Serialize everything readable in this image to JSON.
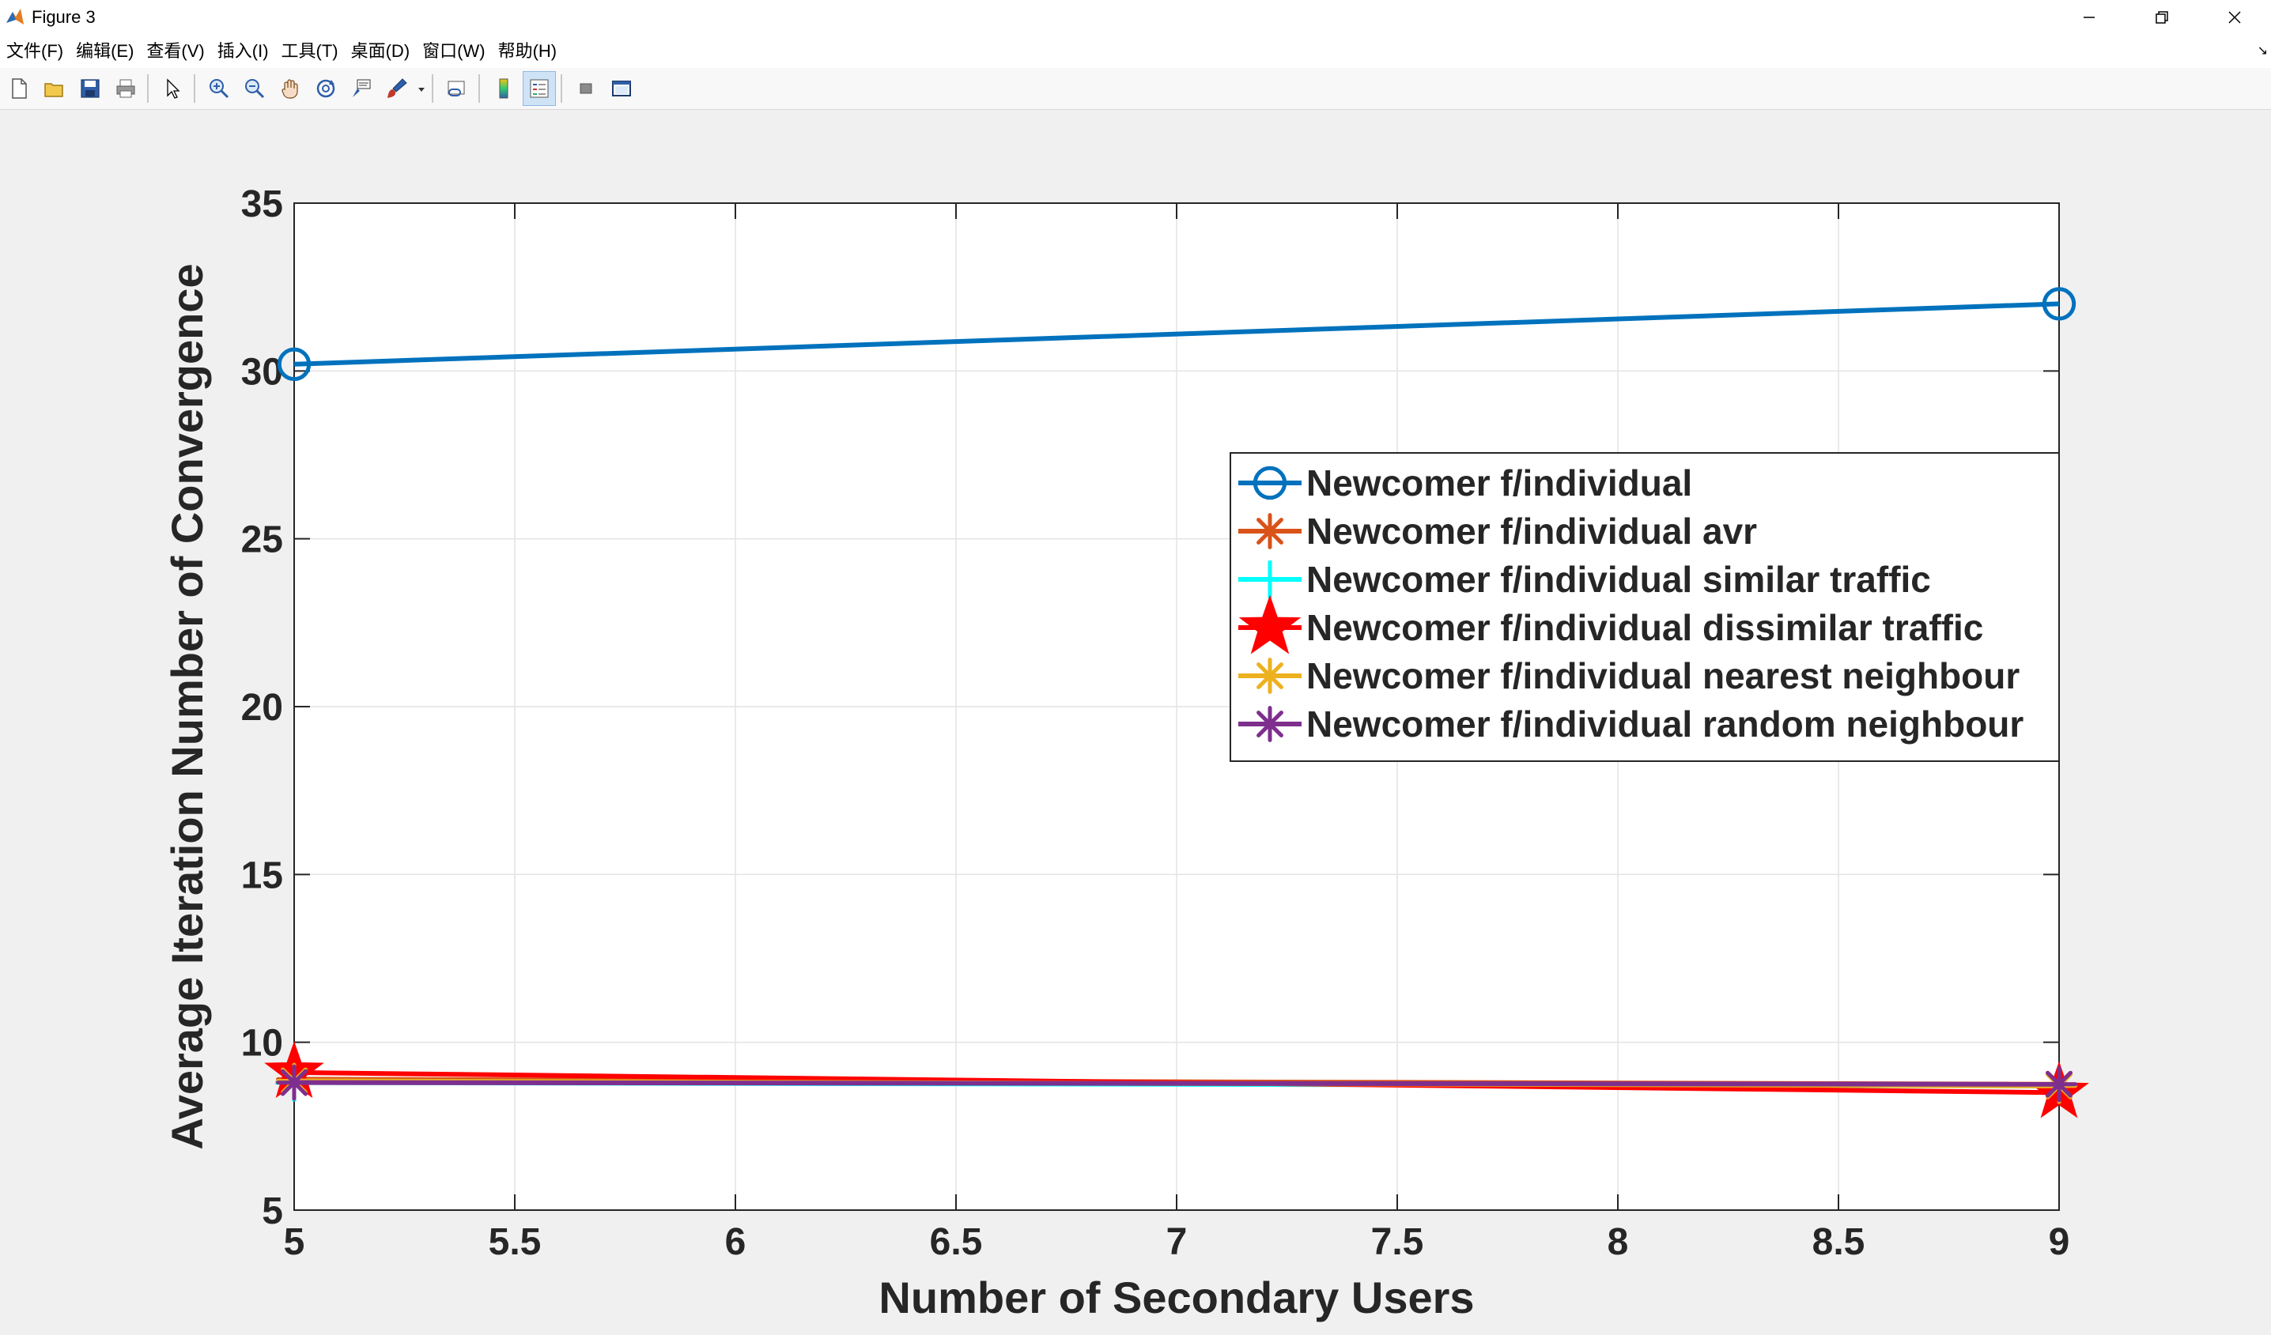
{
  "window": {
    "title": "Figure 3",
    "app_icon": "matlab-icon"
  },
  "menu": {
    "items": [
      "文件(F)",
      "编辑(E)",
      "查看(V)",
      "插入(I)",
      "工具(T)",
      "桌面(D)",
      "窗口(W)",
      "帮助(H)"
    ]
  },
  "toolbar": {
    "buttons": [
      "new-figure-icon",
      "open-file-icon",
      "save-icon",
      "print-icon",
      "edit-plot-icon",
      "zoom-in-icon",
      "zoom-out-icon",
      "pan-icon",
      "rotate-3d-icon",
      "data-cursor-icon",
      "brush-icon",
      "link-plot-icon",
      "colorbar-icon",
      "legend-icon",
      "hide-plot-tools-icon",
      "show-plot-tools-icon"
    ]
  },
  "colors": {
    "series1": "#0072BD",
    "series2": "#D95319",
    "series3": "#00FFFF",
    "series4": "#FF0000",
    "series5": "#EDB120",
    "series6": "#7E2F8E"
  },
  "chart_data": {
    "type": "line",
    "title": "",
    "xlabel": "Number of Secondary Users",
    "ylabel": "Average Iteration Number of Convergence",
    "xlim": [
      5,
      9
    ],
    "ylim": [
      5,
      35
    ],
    "xticks": [
      5,
      5.5,
      6,
      6.5,
      7,
      7.5,
      8,
      8.5,
      9
    ],
    "xtick_labels": [
      "5",
      "5.5",
      "6",
      "6.5",
      "7",
      "7.5",
      "8",
      "8.5",
      "9"
    ],
    "yticks": [
      5,
      10,
      15,
      20,
      25,
      30,
      35
    ],
    "ytick_labels": [
      "5",
      "10",
      "15",
      "20",
      "25",
      "30",
      "35"
    ],
    "grid": true,
    "legend_position": "top-right",
    "series": [
      {
        "name": "Newcomer f/individual",
        "color": "#0072BD",
        "marker": "circle",
        "x": [
          5,
          9
        ],
        "y": [
          30.2,
          32.0
        ]
      },
      {
        "name": "Newcomer f/individual avr",
        "color": "#D95319",
        "marker": "asterisk",
        "x": [
          5,
          9
        ],
        "y": [
          8.9,
          8.75
        ]
      },
      {
        "name": "Newcomer f/individual similar traffic",
        "color": "#00FFFF",
        "marker": "plus",
        "x": [
          5,
          9
        ],
        "y": [
          8.8,
          8.7
        ]
      },
      {
        "name": "Newcomer f/individual dissimilar traffic",
        "color": "#FF0000",
        "marker": "pentagram",
        "x": [
          5,
          9
        ],
        "y": [
          9.1,
          8.5
        ]
      },
      {
        "name": "Newcomer f/individual nearest neighbour",
        "color": "#EDB120",
        "marker": "asterisk",
        "x": [
          5,
          9
        ],
        "y": [
          8.85,
          8.7
        ]
      },
      {
        "name": "Newcomer f/individual random neighbour",
        "color": "#7E2F8E",
        "marker": "asterisk",
        "x": [
          5,
          9
        ],
        "y": [
          8.8,
          8.75
        ]
      }
    ]
  }
}
